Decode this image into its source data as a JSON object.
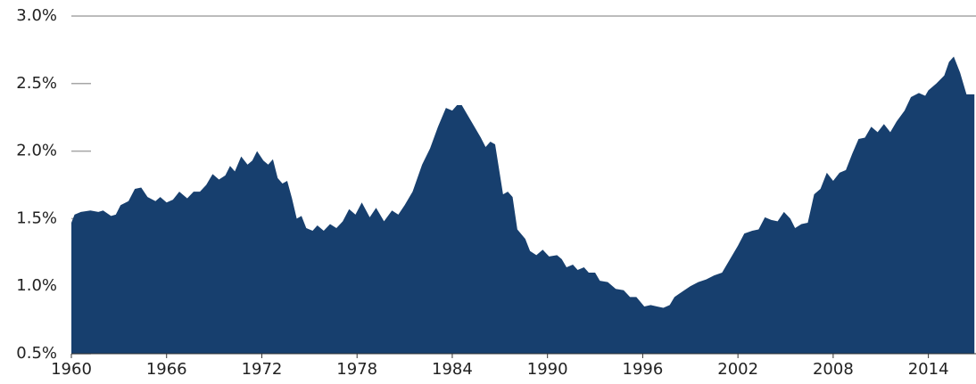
{
  "chart_data": {
    "type": "area",
    "x": [
      1960.0,
      1960.2,
      1960.6,
      1961.2,
      1961.7,
      1962.0,
      1962.5,
      1962.8,
      1963.1,
      1963.6,
      1964.0,
      1964.4,
      1964.8,
      1965.3,
      1965.6,
      1966.0,
      1966.4,
      1966.8,
      1967.3,
      1967.7,
      1968.1,
      1968.5,
      1968.9,
      1969.3,
      1969.7,
      1970.0,
      1970.3,
      1970.7,
      1971.1,
      1971.4,
      1971.7,
      1972.1,
      1972.4,
      1972.7,
      1973.0,
      1973.3,
      1973.6,
      1973.9,
      1974.2,
      1974.5,
      1974.8,
      1975.2,
      1975.5,
      1975.9,
      1976.3,
      1976.7,
      1977.1,
      1977.5,
      1977.9,
      1978.3,
      1978.8,
      1979.2,
      1979.7,
      1980.2,
      1980.6,
      1981.0,
      1981.5,
      1982.1,
      1982.6,
      1983.1,
      1983.6,
      1984.0,
      1984.3,
      1984.6,
      1985.2,
      1985.8,
      1986.1,
      1986.4,
      1986.7,
      1987.2,
      1987.5,
      1987.8,
      1988.1,
      1988.6,
      1988.9,
      1989.3,
      1989.7,
      1990.1,
      1990.6,
      1990.9,
      1991.2,
      1991.6,
      1991.9,
      1992.3,
      1992.6,
      1993.0,
      1993.3,
      1993.8,
      1994.3,
      1994.8,
      1995.2,
      1995.6,
      1996.1,
      1996.5,
      1996.9,
      1997.3,
      1997.7,
      1998.0,
      1998.5,
      1999.0,
      1999.5,
      2000.0,
      2000.5,
      2001.0,
      2001.5,
      2002.0,
      2002.4,
      2002.9,
      2003.3,
      2003.7,
      2004.1,
      2004.5,
      2004.9,
      2005.3,
      2005.6,
      2006.0,
      2006.4,
      2006.8,
      2007.2,
      2007.6,
      2008.0,
      2008.4,
      2008.8,
      2009.2,
      2009.6,
      2010.0,
      2010.4,
      2010.8,
      2011.2,
      2011.6,
      2012.0,
      2012.5,
      2012.9,
      2013.4,
      2013.8,
      2014.0,
      2014.5,
      2015.0,
      2015.3,
      2015.6,
      2016.0,
      2016.4,
      2016.9
    ],
    "values": [
      1.47,
      1.53,
      1.55,
      1.56,
      1.55,
      1.56,
      1.52,
      1.53,
      1.6,
      1.63,
      1.72,
      1.73,
      1.66,
      1.63,
      1.66,
      1.62,
      1.64,
      1.7,
      1.65,
      1.7,
      1.7,
      1.75,
      1.83,
      1.79,
      1.82,
      1.89,
      1.85,
      1.96,
      1.9,
      1.93,
      2.0,
      1.93,
      1.9,
      1.94,
      1.8,
      1.76,
      1.78,
      1.65,
      1.5,
      1.52,
      1.43,
      1.41,
      1.45,
      1.41,
      1.46,
      1.43,
      1.48,
      1.57,
      1.53,
      1.62,
      1.51,
      1.58,
      1.48,
      1.56,
      1.53,
      1.6,
      1.7,
      1.9,
      2.02,
      2.18,
      2.32,
      2.3,
      2.34,
      2.34,
      2.22,
      2.1,
      2.03,
      2.07,
      2.05,
      1.68,
      1.7,
      1.66,
      1.42,
      1.35,
      1.26,
      1.23,
      1.27,
      1.22,
      1.23,
      1.2,
      1.14,
      1.16,
      1.12,
      1.14,
      1.1,
      1.1,
      1.04,
      1.03,
      0.98,
      0.97,
      0.92,
      0.92,
      0.85,
      0.86,
      0.85,
      0.84,
      0.86,
      0.92,
      0.96,
      1.0,
      1.03,
      1.05,
      1.08,
      1.1,
      1.2,
      1.3,
      1.39,
      1.41,
      1.42,
      1.51,
      1.49,
      1.48,
      1.55,
      1.5,
      1.43,
      1.46,
      1.47,
      1.68,
      1.72,
      1.84,
      1.78,
      1.84,
      1.86,
      1.98,
      2.09,
      2.1,
      2.18,
      2.14,
      2.2,
      2.14,
      2.22,
      2.3,
      2.4,
      2.43,
      2.41,
      2.45,
      2.5,
      2.56,
      2.66,
      2.7,
      2.58,
      2.42,
      2.42
    ],
    "color": "#173f6e",
    "xlim": [
      1960,
      2017
    ],
    "xticks": [
      1960,
      1966,
      1972,
      1978,
      1984,
      1990,
      1996,
      2002,
      2008,
      2014
    ],
    "ylim": [
      0.5,
      3.0
    ],
    "yticks": [
      {
        "value": 0.5,
        "label": "0.5%"
      },
      {
        "value": 1.0,
        "label": "1.0%"
      },
      {
        "value": 1.5,
        "label": "1.5%"
      },
      {
        "value": 2.0,
        "label": "2.0%"
      },
      {
        "value": 2.5,
        "label": "2.5%"
      },
      {
        "value": 3.0,
        "label": "3.0%"
      }
    ]
  }
}
